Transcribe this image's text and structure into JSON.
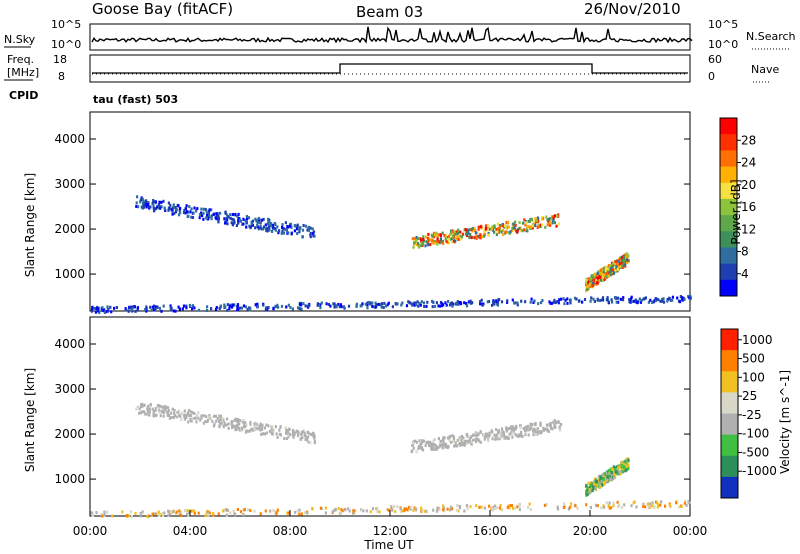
{
  "header": {
    "title": "Goose Bay (fitACF)",
    "beam": "Beam 03",
    "date": "26/Nov/2010"
  },
  "strip": {
    "nsky_label": "N.Sky",
    "nsearch_label": "N.Search",
    "freq_label_1": "Freq.",
    "freq_label_2": "[MHz]",
    "nave_label": "Nave",
    "cpid_label": "CPID",
    "cpid_text": "tau (fast) 503",
    "left_ticks_1": [
      "10^5",
      "10^0"
    ],
    "right_ticks_1": [
      "10^5",
      "10^0"
    ],
    "left_ticks_2": [
      "18",
      "8"
    ],
    "right_ticks_2": [
      "60",
      "0"
    ]
  },
  "chart_data": [
    {
      "type": "heatmap",
      "title": "",
      "xlabel": "",
      "ylabel": "Slant Range [km]",
      "xlim": [
        0,
        24
      ],
      "ylim": [
        180,
        4600
      ],
      "x_ticks": [],
      "y_ticks": [
        "1000",
        "2000",
        "3000",
        "4000"
      ],
      "colorbar": {
        "label": "Power [dB]",
        "ticks": [
          "4",
          "8",
          "12",
          "16",
          "20",
          "24",
          "28"
        ],
        "colors": [
          "#0000ff",
          "#1f3fb0",
          "#2f6fa0",
          "#3e8f5a",
          "#5fa84a",
          "#8cc43c",
          "#f6e042",
          "#ffb000",
          "#ff7000",
          "#ff3000",
          "#ff0000"
        ]
      },
      "echo_regions": [
        {
          "t_start": 1.8,
          "t_end": 9.0,
          "range_start": 2600,
          "range_end": 1900,
          "level": "low"
        },
        {
          "t_start": 12.8,
          "t_end": 18.8,
          "range_start": 1700,
          "range_end": 2200,
          "level": "high"
        },
        {
          "t_start": 19.8,
          "t_end": 21.5,
          "range_start": 750,
          "range_end": 1350,
          "level": "high"
        },
        {
          "t_start": 0.0,
          "t_end": 24.0,
          "range_start": 200,
          "range_end": 450,
          "level": "low"
        }
      ]
    },
    {
      "type": "heatmap",
      "title": "",
      "xlabel": "Time UT",
      "ylabel": "Slant Range [km]",
      "xlim": [
        0,
        24
      ],
      "ylim": [
        180,
        4600
      ],
      "x_ticks": [
        "00:00",
        "04:00",
        "08:00",
        "12:00",
        "16:00",
        "20:00",
        "00:00"
      ],
      "y_ticks": [
        "1000",
        "2000",
        "3000",
        "4000"
      ],
      "colorbar": {
        "label": "Velocity [m s^-1]",
        "ticks": [
          "1000",
          "500",
          "100",
          "25",
          "-25",
          "-100",
          "-500",
          "-1000"
        ],
        "colors": [
          "#1030c0",
          "#2e8f5a",
          "#40c040",
          "#b0b0b0",
          "#d8d8c8",
          "#f0c020",
          "#ff8000",
          "#ff2000"
        ]
      },
      "echo_regions": [
        {
          "t_start": 1.8,
          "t_end": 9.0,
          "range_start": 2600,
          "range_end": 1900,
          "level": "ground"
        },
        {
          "t_start": 12.8,
          "t_end": 18.8,
          "range_start": 1700,
          "range_end": 2200,
          "level": "ground"
        },
        {
          "t_start": 19.8,
          "t_end": 21.5,
          "range_start": 750,
          "range_end": 1350,
          "level": "mixed"
        },
        {
          "t_start": 0.0,
          "t_end": 24.0,
          "range_start": 200,
          "range_end": 450,
          "level": "negative"
        }
      ]
    }
  ]
}
